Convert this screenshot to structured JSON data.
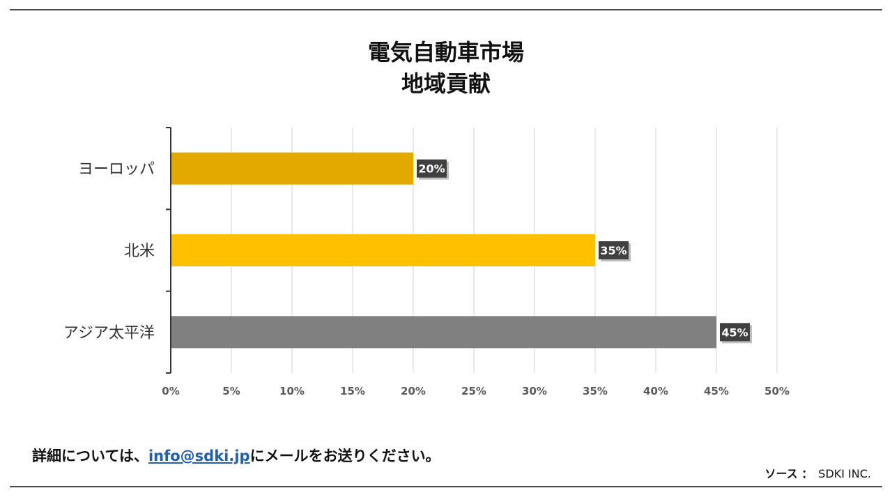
{
  "chart_data": {
    "type": "bar",
    "orientation": "horizontal",
    "title_lines": [
      "電気自動車市場",
      "地域貢献"
    ],
    "categories": [
      "ヨーロッパ",
      "北米",
      "アジア太平洋"
    ],
    "values": [
      20,
      35,
      45
    ],
    "value_labels": [
      "20%",
      "35%",
      "45%"
    ],
    "colors": [
      "#E2AA00",
      "#FFC000",
      "#808080"
    ],
    "xlim": [
      0,
      50
    ],
    "xticks": [
      0,
      5,
      10,
      15,
      20,
      25,
      30,
      35,
      40,
      45,
      50
    ],
    "xtick_labels": [
      "0%",
      "5%",
      "10%",
      "15%",
      "20%",
      "25%",
      "30%",
      "35%",
      "40%",
      "45%",
      "50%"
    ],
    "grid": "vertical",
    "legend": "none"
  },
  "footer": {
    "note_before": "詳細については、",
    "email": "info@sdki.jp",
    "note_after": "にメールをお送りください。",
    "source_label": "ソース ：",
    "source_value": "SDKI INC."
  }
}
